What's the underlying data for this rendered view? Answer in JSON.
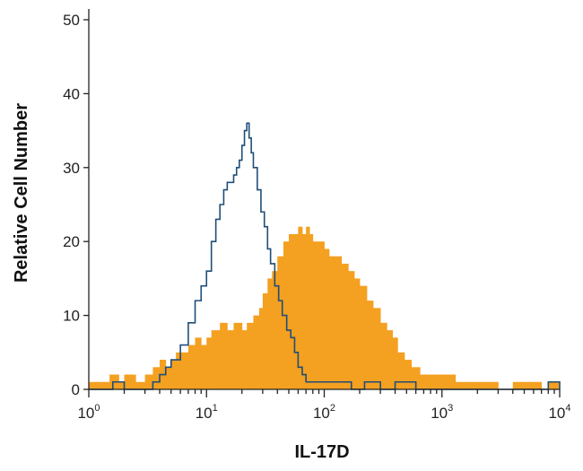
{
  "chart_data": {
    "type": "area",
    "title": "",
    "xlabel": "IL-17D",
    "ylabel": "Relative Cell Number",
    "x_scale": "log",
    "xlim": [
      1,
      10000
    ],
    "ylim": [
      0,
      50
    ],
    "x_ticks": [
      {
        "value": 1,
        "base": "10",
        "exp": "0"
      },
      {
        "value": 10,
        "base": "10",
        "exp": "1"
      },
      {
        "value": 100,
        "base": "10",
        "exp": "2"
      },
      {
        "value": 1000,
        "base": "10",
        "exp": "3"
      },
      {
        "value": 10000,
        "base": "10",
        "exp": "4"
      }
    ],
    "y_ticks": [
      0,
      10,
      20,
      30,
      40,
      50
    ],
    "grid": false,
    "legend": "none",
    "series": [
      {
        "style": "filled-histogram",
        "color": "#F4A020",
        "x": [
          1.0,
          1.5,
          1.8,
          2.0,
          2.5,
          3.0,
          3.5,
          4.0,
          4.5,
          5.0,
          5.5,
          6.0,
          7.0,
          8.0,
          9.0,
          10.0,
          11.0,
          13.0,
          15.0,
          17.0,
          20.0,
          22.0,
          25.0,
          28.0,
          30.0,
          33.0,
          36.0,
          40.0,
          45.0,
          50.0,
          55.0,
          60.0,
          65.0,
          70.0,
          75.0,
          80.0,
          90.0,
          100.0,
          110.0,
          125.0,
          140.0,
          160.0,
          180.0,
          200.0,
          230.0,
          260.0,
          300.0,
          340.0,
          380.0,
          420.0,
          480.0,
          550.0,
          650.0,
          800.0,
          1000.0,
          1300.0,
          1700.0,
          2200.0,
          3000.0,
          4000.0,
          5000.0,
          6000.0,
          7000.0,
          8000.0,
          9000.0,
          10000.0
        ],
        "values": [
          1,
          2,
          1,
          2,
          1,
          2,
          3,
          4,
          3,
          4,
          5,
          5,
          6,
          7,
          6,
          7,
          8,
          9,
          8,
          9,
          8,
          9,
          10,
          11,
          13,
          15,
          16,
          18,
          20,
          21,
          21,
          22,
          21,
          22,
          21,
          20,
          20,
          19,
          18,
          18,
          17,
          16,
          15,
          14,
          12,
          11,
          9,
          8,
          7,
          5,
          4,
          3,
          2,
          2,
          2,
          1,
          1,
          1,
          0,
          1,
          1,
          1,
          0,
          1,
          1,
          0
        ]
      },
      {
        "style": "outline-histogram",
        "color": "#1F4E79",
        "x": [
          1.0,
          1.6,
          2.0,
          2.5,
          3.0,
          3.5,
          4.0,
          4.5,
          5.0,
          6.0,
          7.0,
          8.0,
          9.0,
          10.0,
          11.0,
          12.0,
          13.0,
          14.0,
          15.0,
          16.0,
          17.0,
          18.0,
          19.0,
          20.0,
          21.0,
          22.0,
          23.0,
          24.0,
          25.0,
          27.0,
          29.0,
          31.0,
          33.0,
          35.0,
          38.0,
          41.0,
          44.0,
          48.0,
          52.0,
          56.0,
          60.0,
          65.0,
          70.0,
          80.0,
          100.0,
          130.0,
          170.0,
          220.0,
          300.0,
          400.0,
          600.0,
          1000.0,
          2000.0,
          5000.0,
          8000.0,
          9000.0,
          10000.0
        ],
        "values": [
          0,
          1,
          0,
          0,
          0,
          1,
          2,
          3,
          4,
          6,
          9,
          12,
          14,
          16,
          20,
          23,
          25,
          27,
          28,
          28,
          29,
          30,
          31,
          33,
          35,
          36,
          34,
          32,
          30,
          27,
          24,
          22,
          19,
          17,
          14,
          12,
          10,
          8,
          7,
          5,
          3,
          2,
          1,
          1,
          1,
          1,
          0,
          1,
          0,
          1,
          0,
          0,
          0,
          0,
          1,
          1,
          0
        ]
      }
    ]
  }
}
